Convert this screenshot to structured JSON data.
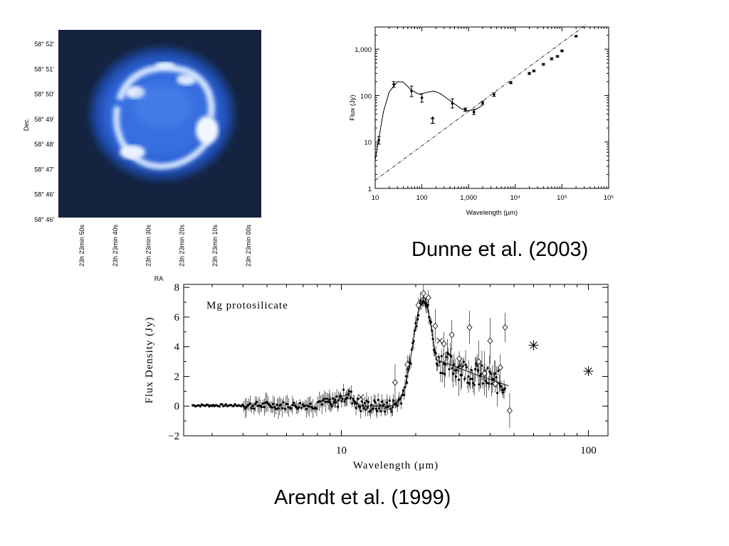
{
  "captions": {
    "top": "Dunne et al. (2003)",
    "bottom": "Arendt et al. (1999)"
  },
  "image_panel": {
    "dec_label": "Dec.",
    "ra_label": "RA",
    "dec_ticks": [
      "58° 52′",
      "58° 51′",
      "58° 50′",
      "58° 49′",
      "58° 48′",
      "58° 47′",
      "58° 46′",
      "58° 46′"
    ],
    "ra_ticks": [
      "23h 23min 50s",
      "23h 23min 40s",
      "23h 23min 30s",
      "23h 23min 20s",
      "23h 23min 10s",
      "23h 23min 00s"
    ],
    "colors": {
      "background": "#14233f",
      "shell": "#2f6fe0",
      "bright": "#e8f1ff"
    }
  },
  "chart_data": [
    {
      "type": "scatter",
      "xlabel": "Wavelength (µm)",
      "ylabel": "Flux (Jy)",
      "xscale": "log",
      "yscale": "log",
      "xlim": [
        10,
        1000000
      ],
      "ylim": [
        1,
        3000
      ],
      "x_tick_labels": [
        "10",
        "100",
        "1,000",
        "10⁴",
        "10⁵",
        "10⁶"
      ],
      "y_tick_labels": [
        "1",
        "10",
        "100",
        "1,000"
      ],
      "points": [
        {
          "x": 12,
          "y": 11,
          "err": [
            9,
            13
          ]
        },
        {
          "x": 25,
          "y": 175,
          "err": [
            150,
            200
          ]
        },
        {
          "x": 60,
          "y": 125,
          "err": [
            95,
            160
          ]
        },
        {
          "x": 100,
          "y": 90,
          "err": [
            72,
            110
          ]
        },
        {
          "x": 450,
          "y": 68,
          "err": [
            54,
            85
          ]
        },
        {
          "x": 850,
          "y": 50,
          "err": [
            46,
            54
          ]
        },
        {
          "x": 1300,
          "y": 44,
          "err": [
            39,
            49
          ]
        },
        {
          "x": 2000,
          "y": 70,
          "err": [
            64,
            76
          ]
        },
        {
          "x": 3500,
          "y": 105,
          "err": [
            96,
            115
          ]
        },
        {
          "x": 8000,
          "y": 190,
          "err": [
            180,
            200
          ]
        },
        {
          "x": 20000,
          "y": 300,
          "err": [
            285,
            315
          ]
        },
        {
          "x": 25000,
          "y": 340,
          "err": [
            325,
            355
          ]
        },
        {
          "x": 40000,
          "y": 470,
          "err": [
            450,
            490
          ]
        },
        {
          "x": 60000,
          "y": 620,
          "err": [
            590,
            650
          ]
        },
        {
          "x": 80000,
          "y": 700,
          "err": [
            670,
            730
          ]
        },
        {
          "x": 100000,
          "y": 920,
          "err": [
            880,
            960
          ]
        },
        {
          "x": 200000,
          "y": 1900,
          "err": [
            1850,
            1950
          ]
        }
      ],
      "upper_limits": [
        {
          "x": 170,
          "y": 28
        }
      ],
      "model_curve": [
        [
          10,
          4
        ],
        [
          12,
          12
        ],
        [
          15,
          45
        ],
        [
          20,
          120
        ],
        [
          30,
          200
        ],
        [
          40,
          195
        ],
        [
          60,
          130
        ],
        [
          90,
          105
        ],
        [
          130,
          118
        ],
        [
          180,
          125
        ],
        [
          250,
          110
        ],
        [
          400,
          78
        ],
        [
          700,
          52
        ],
        [
          1000,
          47
        ],
        [
          1500,
          52
        ],
        [
          2000,
          62
        ]
      ],
      "powerlaw_line": [
        [
          10,
          1.5
        ],
        [
          200000,
          2100
        ]
      ]
    },
    {
      "type": "scatter",
      "annotation": "Mg protosilicate",
      "xlabel": "Wavelength (µm)",
      "ylabel": "Flux Density (Jy)",
      "xscale": "log",
      "xlim": [
        2.3,
        120
      ],
      "ylim": [
        -2,
        8.2
      ],
      "x_tick_labels": [
        "10",
        "100"
      ],
      "y_tick_labels": [
        "−2",
        "0",
        "2",
        "4",
        "6",
        "8"
      ],
      "far_ir_points": [
        {
          "x": 60,
          "y": 4.1
        },
        {
          "x": 100,
          "y": 2.35
        }
      ],
      "x_markers": [
        {
          "x": 12,
          "y": 0.6
        },
        {
          "x": 25,
          "y": 4.4
        }
      ]
    }
  ]
}
